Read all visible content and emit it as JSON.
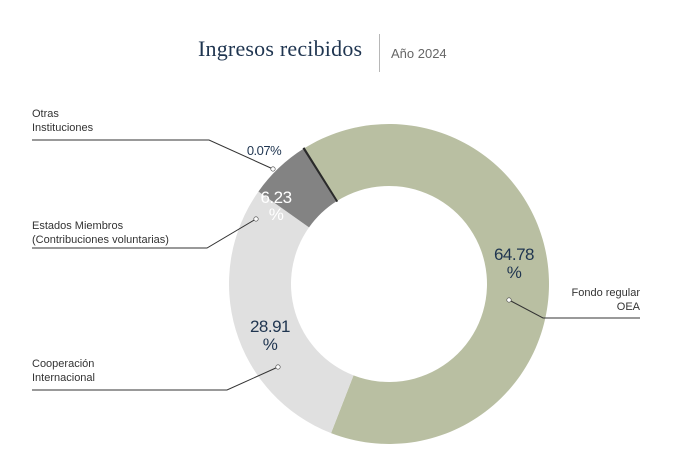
{
  "header": {
    "title": "Ingresos recibidos",
    "subtitle": "Año 2024"
  },
  "chart_data": {
    "type": "pie",
    "donut": true,
    "title": "Ingresos recibidos",
    "subtitle": "Año 2024",
    "slices": [
      {
        "label_lines": [
          "Fondo regular",
          "OEA"
        ],
        "value": 64.78,
        "value_lines": [
          "64.78",
          "%"
        ],
        "color": "#b9bfa2"
      },
      {
        "label_lines": [
          "Cooperación",
          "Internacional"
        ],
        "value": 28.91,
        "value_lines": [
          "28.91",
          "%"
        ],
        "color": "#e0e0e0"
      },
      {
        "label_lines": [
          "Estados Miembros",
          "(Contribuciones voluntarias)"
        ],
        "value": 6.23,
        "value_lines": [
          "6.23",
          "%"
        ],
        "color": "#838383"
      },
      {
        "label_lines": [
          "Otras",
          "Instituciones"
        ],
        "value": 0.07,
        "value_lines": [
          "0.07%"
        ],
        "color": "#2a2a2a"
      }
    ],
    "colors": {
      "title": "#1f3550",
      "value_text": "#1f3550",
      "leader_line": "#333333"
    }
  }
}
